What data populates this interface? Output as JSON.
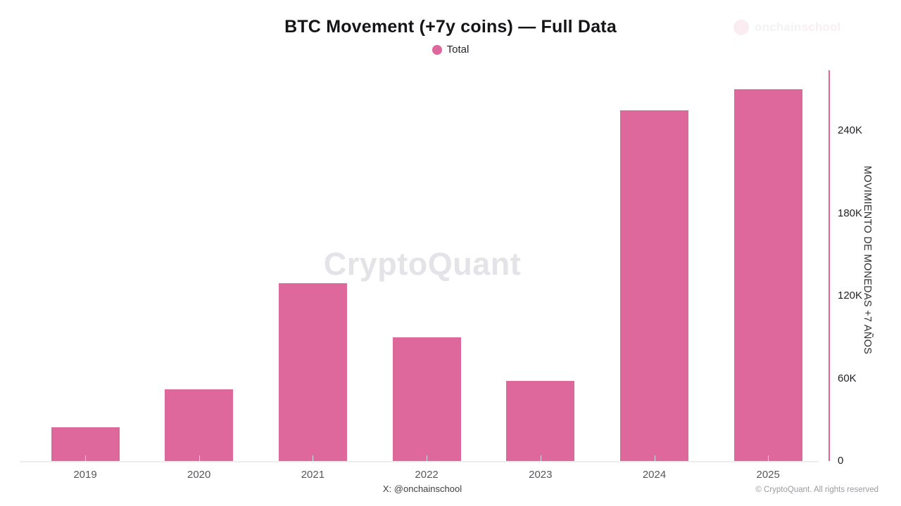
{
  "header": {
    "title": "BTC Movement (+7y coins) — Full Data",
    "brand_watermark": {
      "part1": "onchain",
      "part2": "school"
    }
  },
  "legend": {
    "items": [
      {
        "label": "Total",
        "color": "#de689c"
      }
    ]
  },
  "chart_data": {
    "type": "bar",
    "title": "BTC Movement (+7y coins) — Full Data",
    "categories": [
      "2019",
      "2020",
      "2021",
      "2022",
      "2023",
      "2024",
      "2025"
    ],
    "series": [
      {
        "name": "Total",
        "color": "#de689c",
        "values": [
          24500,
          52000,
          129000,
          90000,
          58000,
          255000,
          270000
        ]
      }
    ],
    "xlabel": "",
    "ylabel": "MOVIMIENTO DE MONEDAS +7 AÑOS",
    "ylim": [
      0,
      284000
    ],
    "y_ticks": [
      {
        "value": 0,
        "label": "0"
      },
      {
        "value": 60000,
        "label": "60K"
      },
      {
        "value": 120000,
        "label": "120K"
      },
      {
        "value": 180000,
        "label": "180K"
      },
      {
        "value": 240000,
        "label": "240K"
      }
    ],
    "grid": false,
    "legend_position": "top",
    "y_axis_side": "right",
    "axis_color": "#e4668f"
  },
  "watermark": {
    "center": "CryptoQuant"
  },
  "footer": {
    "caption": "X: @onchainschool",
    "copyright": "© CryptoQuant. All rights reserved"
  }
}
